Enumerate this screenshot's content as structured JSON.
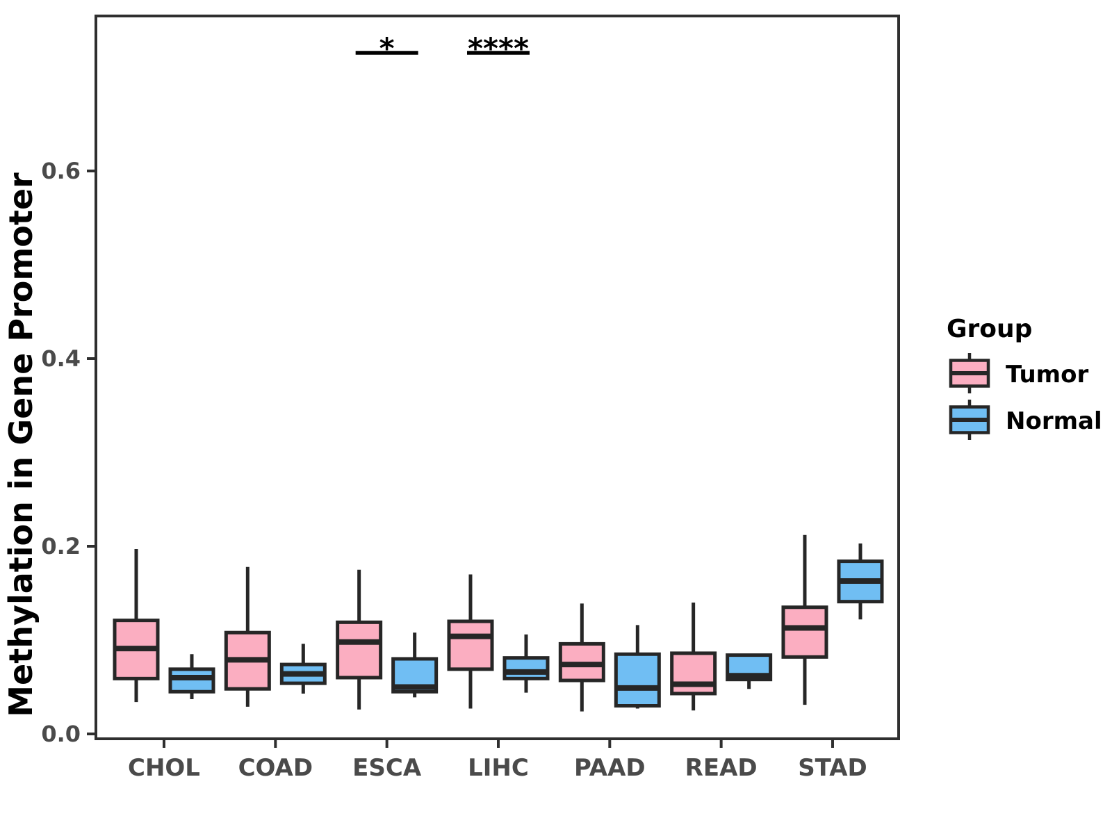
{
  "figure": {
    "y_axis_title": "Methylation in Gene Promoter",
    "legend": {
      "title": "Group",
      "items": [
        {
          "label": "Tumor",
          "color": "#FBAEC1"
        },
        {
          "label": "Normal",
          "color": "#70BEF3"
        }
      ]
    }
  },
  "chart_data": {
    "type": "grouped_boxplot",
    "title": "",
    "xlabel": "",
    "ylabel": "Methylation in Gene Promoter",
    "categories": [
      "CHOL",
      "COAD",
      "ESCA",
      "LIHC",
      "PAAD",
      "READ",
      "STAD"
    ],
    "y_axis": {
      "title": "Methylation in Gene Promoter",
      "ticks": [
        {
          "value": 0.0,
          "label": "0.0"
        },
        {
          "value": 0.2,
          "label": "0.2"
        },
        {
          "value": 0.4,
          "label": "0.4"
        },
        {
          "value": 0.6,
          "label": "0.6"
        }
      ],
      "ylim": [
        -0.005,
        0.765
      ]
    },
    "grid": false,
    "legend_position": "right",
    "series": [
      {
        "name": "Tumor",
        "color": "#FBAEC1",
        "boxes": [
          {
            "category": "CHOL",
            "min": 0.034,
            "q1": 0.059,
            "median": 0.091,
            "q3": 0.121,
            "max": 0.197
          },
          {
            "category": "COAD",
            "min": 0.029,
            "q1": 0.048,
            "median": 0.079,
            "q3": 0.108,
            "max": 0.178
          },
          {
            "category": "ESCA",
            "min": 0.026,
            "q1": 0.06,
            "median": 0.098,
            "q3": 0.119,
            "max": 0.175
          },
          {
            "category": "LIHC",
            "min": 0.027,
            "q1": 0.069,
            "median": 0.104,
            "q3": 0.12,
            "max": 0.17
          },
          {
            "category": "PAAD",
            "min": 0.024,
            "q1": 0.057,
            "median": 0.074,
            "q3": 0.096,
            "max": 0.139
          },
          {
            "category": "READ",
            "min": 0.025,
            "q1": 0.043,
            "median": 0.053,
            "q3": 0.086,
            "max": 0.14
          },
          {
            "category": "STAD",
            "min": 0.031,
            "q1": 0.082,
            "median": 0.113,
            "q3": 0.135,
            "max": 0.212
          }
        ]
      },
      {
        "name": "Normal",
        "color": "#70BEF3",
        "boxes": [
          {
            "category": "CHOL",
            "min": 0.037,
            "q1": 0.045,
            "median": 0.06,
            "q3": 0.069,
            "max": 0.085
          },
          {
            "category": "COAD",
            "min": 0.043,
            "q1": 0.054,
            "median": 0.064,
            "q3": 0.074,
            "max": 0.096
          },
          {
            "category": "ESCA",
            "min": 0.039,
            "q1": 0.045,
            "median": 0.05,
            "q3": 0.08,
            "max": 0.108
          },
          {
            "category": "LIHC",
            "min": 0.044,
            "q1": 0.059,
            "median": 0.066,
            "q3": 0.081,
            "max": 0.106
          },
          {
            "category": "PAAD",
            "min": 0.027,
            "q1": 0.03,
            "median": 0.049,
            "q3": 0.085,
            "max": 0.116
          },
          {
            "category": "READ",
            "min": 0.048,
            "q1": 0.058,
            "median": 0.062,
            "q3": 0.084,
            "max": 0.084
          },
          {
            "category": "STAD",
            "min": 0.122,
            "q1": 0.141,
            "median": 0.163,
            "q3": 0.184,
            "max": 0.203
          }
        ]
      }
    ],
    "significance": [
      {
        "category": "ESCA",
        "label": "*"
      },
      {
        "category": "LIHC",
        "label": "****"
      }
    ],
    "style": {
      "box_outline_color": "#262626",
      "axis_line_color": "#2F2F2F",
      "tick_label_color": "#4A4A4A",
      "title_color": "#000000"
    }
  }
}
